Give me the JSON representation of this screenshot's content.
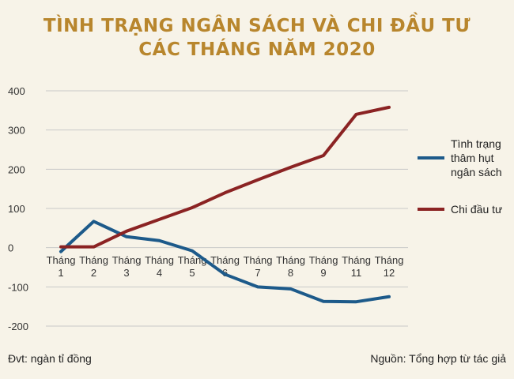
{
  "chart_data": {
    "type": "line",
    "title_lines": [
      "TÌNH TRẠNG NGÂN SÁCH VÀ CHI ĐẦU TƯ",
      "CÁC THÁNG NĂM 2020"
    ],
    "categories": [
      [
        "Tháng",
        "1"
      ],
      [
        "Tháng",
        "2"
      ],
      [
        "Tháng",
        "3"
      ],
      [
        "Tháng",
        "4"
      ],
      [
        "Tháng",
        "5"
      ],
      [
        "Tháng",
        "6"
      ],
      [
        "Tháng",
        "7"
      ],
      [
        "Tháng",
        "8"
      ],
      [
        "Tháng",
        "9"
      ],
      [
        "Tháng",
        "11"
      ],
      [
        "Tháng",
        "12"
      ]
    ],
    "ylim": [
      -200,
      400
    ],
    "yticks": [
      "400",
      "300",
      "200",
      "100",
      "0",
      "-100",
      "-200"
    ],
    "grid": true,
    "legend_position": "right",
    "series": [
      {
        "name": [
          "Tình trạng",
          "thâm hụt",
          "ngân sách"
        ],
        "color": "#1d5a8a",
        "values": [
          -10,
          67,
          28,
          18,
          -8,
          -68,
          -100,
          -105,
          -137,
          -138,
          -125
        ]
      },
      {
        "name": [
          "Chi đầu tư"
        ],
        "color": "#8b2323",
        "values": [
          2,
          2,
          42,
          72,
          102,
          140,
          173,
          205,
          235,
          340,
          358
        ]
      }
    ]
  },
  "footer": {
    "unit": "Đvt: ngàn tỉ đồng",
    "source": "Nguồn: Tổng hợp từ tác giả"
  }
}
